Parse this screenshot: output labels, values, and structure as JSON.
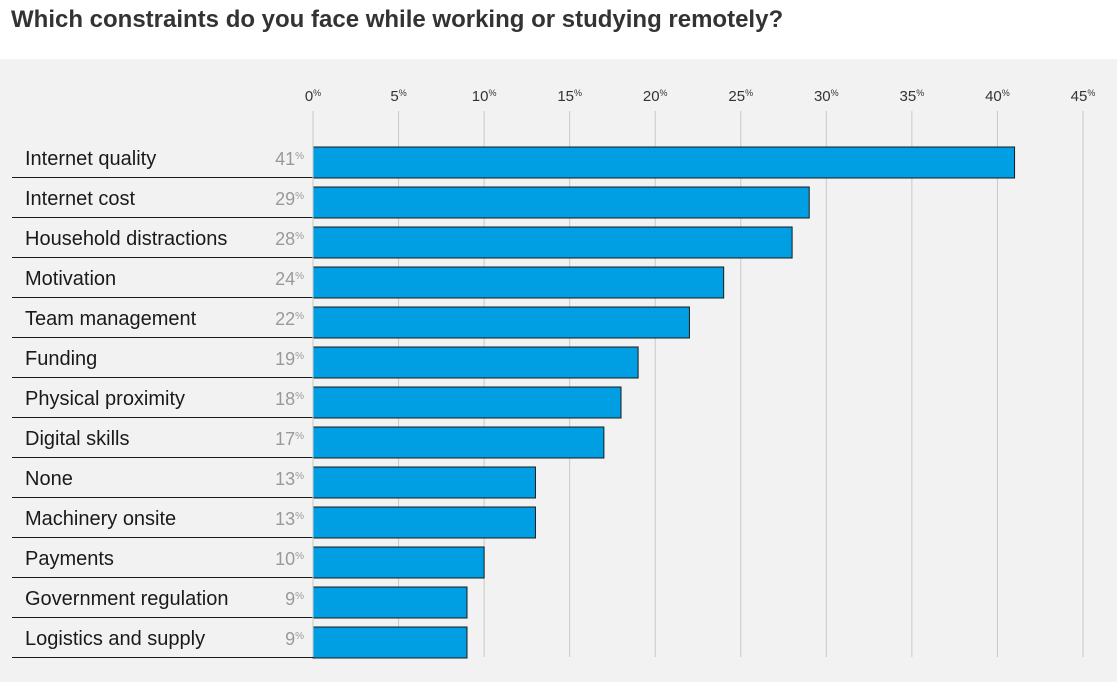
{
  "chart_data": {
    "type": "bar",
    "orientation": "horizontal",
    "title": "Which constraints do you face while working or studying remotely?",
    "categories": [
      "Internet quality",
      "Internet cost",
      "Household distractions",
      "Motivation",
      "Team management",
      "Funding",
      "Physical proximity",
      "Digital skills",
      "None",
      "Machinery onsite",
      "Payments",
      "Government regulation",
      "Logistics and supply"
    ],
    "values": [
      41,
      29,
      28,
      24,
      22,
      19,
      18,
      17,
      13,
      13,
      10,
      9,
      9
    ],
    "value_suffix": "%",
    "xlim": [
      0,
      45
    ],
    "xticks": [
      0,
      5,
      10,
      15,
      20,
      25,
      30,
      35,
      40,
      45
    ],
    "grid": true,
    "bar_color": "#009fe3"
  }
}
